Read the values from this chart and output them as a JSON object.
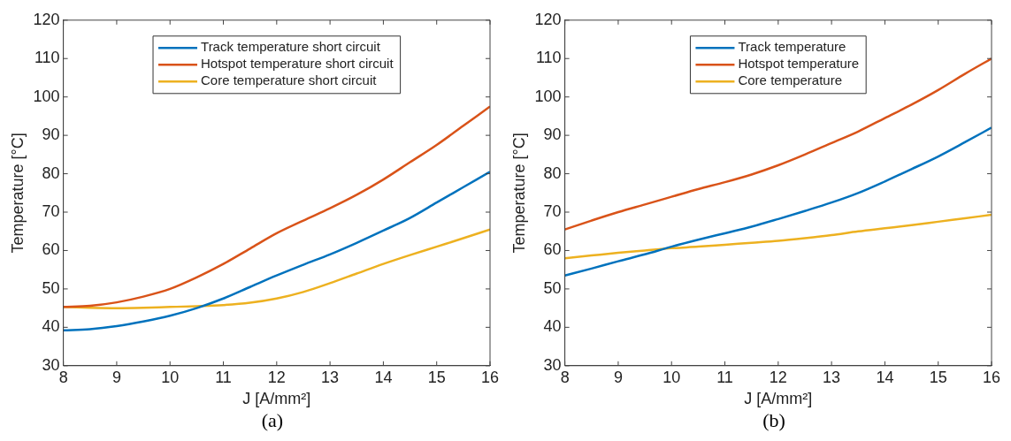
{
  "chart_data": [
    {
      "type": "line",
      "xlabel": "J [A/mm²]",
      "ylabel": "Temperature [°C]",
      "x": [
        8,
        8.5,
        9,
        9.5,
        10,
        10.5,
        11,
        11.5,
        12,
        12.5,
        13,
        13.5,
        14,
        14.5,
        15,
        15.5,
        16
      ],
      "xlim": [
        8,
        16
      ],
      "xticks": [
        8,
        9,
        10,
        11,
        12,
        13,
        14,
        15,
        16
      ],
      "ylim": [
        30,
        120
      ],
      "yticks": [
        30,
        40,
        50,
        60,
        70,
        80,
        90,
        100,
        110,
        120
      ],
      "grid": false,
      "legend": "top",
      "marker": "none",
      "line_style": "solid",
      "annotations": [
        "(a)"
      ],
      "series": [
        {
          "name": "Track temperature short circuit",
          "color": "#0072bd",
          "values": [
            39.2,
            39.5,
            40.3,
            41.5,
            43,
            45,
            47.5,
            50.5,
            53.5,
            56.3,
            59,
            62,
            65.2,
            68.5,
            72.5,
            76.5,
            80.5
          ]
        },
        {
          "name": "Hotspot temperature short circuit",
          "color": "#d95319",
          "values": [
            45.3,
            45.6,
            46.5,
            48,
            50,
            53,
            56.5,
            60.5,
            64.5,
            67.8,
            71,
            74.5,
            78.5,
            83,
            87.5,
            92.5,
            97.5
          ]
        },
        {
          "name": "Core temperature short circuit",
          "color": "#edb120",
          "values": [
            45.3,
            45.1,
            45,
            45.1,
            45.3,
            45.5,
            45.8,
            46.4,
            47.5,
            49.2,
            51.5,
            54,
            56.5,
            58.8,
            61,
            63.2,
            65.5
          ]
        }
      ]
    },
    {
      "type": "line",
      "xlabel": "J [A/mm²]",
      "ylabel": "Temperature [°C]",
      "x": [
        8,
        8.5,
        9,
        9.5,
        10,
        10.5,
        11,
        11.5,
        12,
        12.5,
        13,
        13.5,
        14,
        14.5,
        15,
        15.5,
        16
      ],
      "xlim": [
        8,
        16
      ],
      "xticks": [
        8,
        9,
        10,
        11,
        12,
        13,
        14,
        15,
        16
      ],
      "ylim": [
        30,
        120
      ],
      "yticks": [
        30,
        40,
        50,
        60,
        70,
        80,
        90,
        100,
        110,
        120
      ],
      "grid": false,
      "legend": "top",
      "marker": "none",
      "line_style": "solid",
      "annotations": [
        "(b)"
      ],
      "series": [
        {
          "name": "Track temperature",
          "color": "#0072bd",
          "values": [
            53.5,
            55.3,
            57.2,
            59,
            61,
            62.8,
            64.5,
            66.2,
            68.2,
            70.3,
            72.5,
            75,
            78,
            81.2,
            84.5,
            88.2,
            92
          ]
        },
        {
          "name": "Hotspot temperature",
          "color": "#d95319",
          "values": [
            65.5,
            67.8,
            70,
            72,
            74,
            76,
            77.8,
            79.8,
            82.2,
            85,
            88,
            91,
            94.5,
            98,
            101.8,
            106,
            110
          ]
        },
        {
          "name": "Core temperature",
          "color": "#edb120",
          "values": [
            58,
            58.7,
            59.4,
            60,
            60.6,
            61,
            61.5,
            62,
            62.5,
            63.2,
            64,
            65,
            65.8,
            66.6,
            67.5,
            68.4,
            69.3
          ]
        }
      ]
    }
  ]
}
